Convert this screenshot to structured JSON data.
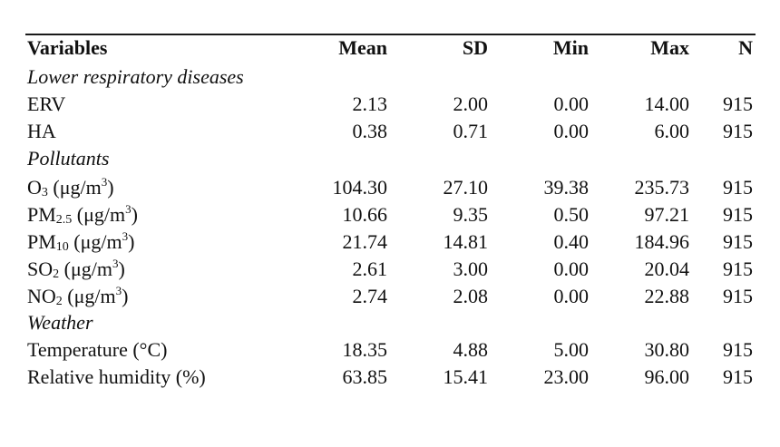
{
  "table": {
    "header": {
      "variable": "Variables",
      "mean": "Mean",
      "sd": "SD",
      "min": "Min",
      "max": "Max",
      "n": "N"
    },
    "sections": {
      "lower_respiratory": "Lower respiratory diseases",
      "pollutants": "Pollutants",
      "weather": "Weather"
    },
    "rows": {
      "erv": {
        "label": "ERV",
        "mean": "2.13",
        "sd": "2.00",
        "min": "0.00",
        "max": "14.00",
        "n": "915"
      },
      "ha": {
        "label": "HA",
        "mean": "0.38",
        "sd": "0.71",
        "min": "0.00",
        "max": "6.00",
        "n": "915"
      },
      "o3": {
        "base": "O",
        "sub": "3",
        "unit": " (μg/m",
        "sup": "3",
        "close": ")",
        "mean": "104.30",
        "sd": "27.10",
        "min": "39.38",
        "max": "235.73",
        "n": "915"
      },
      "pm25": {
        "base": "PM",
        "sub": "2.5",
        "unit": " (μg/m",
        "sup": "3",
        "close": ")",
        "mean": "10.66",
        "sd": "9.35",
        "min": "0.50",
        "max": "97.21",
        "n": "915"
      },
      "pm10": {
        "base": "PM",
        "sub": "10",
        "unit": " (μg/m",
        "sup": "3",
        "close": ")",
        "mean": "21.74",
        "sd": "14.81",
        "min": "0.40",
        "max": "184.96",
        "n": "915"
      },
      "so2": {
        "base": "SO",
        "sub": "2",
        "unit": " (μg/m",
        "sup": "3",
        "close": ")",
        "mean": "2.61",
        "sd": "3.00",
        "min": "0.00",
        "max": "20.04",
        "n": "915"
      },
      "no2": {
        "base": "NO",
        "sub": "2",
        "unit": " (μg/m",
        "sup": "3",
        "close": ")",
        "mean": "2.74",
        "sd": "2.08",
        "min": "0.00",
        "max": "22.88",
        "n": "915"
      },
      "temperature": {
        "label": "Temperature (°C)",
        "mean": "18.35",
        "sd": "4.88",
        "min": "5.00",
        "max": "30.80",
        "n": "915"
      },
      "humidity": {
        "label": "Relative humidity (%)",
        "mean": "63.85",
        "sd": "15.41",
        "min": "23.00",
        "max": "96.00",
        "n": "915"
      }
    }
  }
}
